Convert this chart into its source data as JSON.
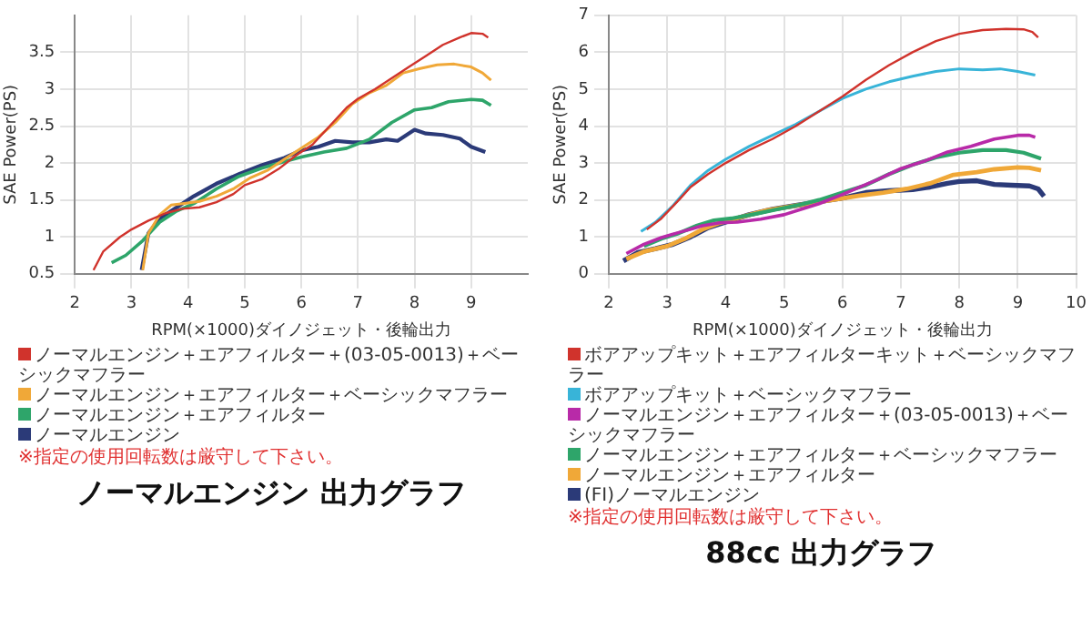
{
  "chart_data": [
    {
      "type": "line",
      "title": "ノーマルエンジン 出力グラフ",
      "xlabel": "RPM(×1000)ダイノジェット・後輪出力",
      "ylabel": "SAE Power(PS)",
      "xlim": [
        2,
        10
      ],
      "xticks": [
        2,
        3,
        4,
        5,
        6,
        7,
        8,
        9
      ],
      "ylim": [
        0.5,
        4.0
      ],
      "yticks": [
        0.5,
        1.0,
        1.5,
        2.0,
        2.5,
        3.0,
        3.5
      ],
      "grid": true,
      "legend": "bottom",
      "marker": "none",
      "line_style": "solid",
      "annotations": [
        "※指定の使用回転数は厳守して下さい。"
      ],
      "series": [
        {
          "name": "ノーマルエンジン＋エアフィルター＋(03-05-0013)＋ベーシックマフラー",
          "color": "#d0332c",
          "x": [
            2.33,
            2.5,
            2.8,
            3.0,
            3.3,
            3.6,
            3.9,
            4.2,
            4.5,
            4.8,
            5.0,
            5.3,
            5.6,
            5.9,
            6.2,
            6.5,
            6.8,
            7.0,
            7.3,
            7.6,
            7.9,
            8.2,
            8.5,
            8.8,
            9.0,
            9.2,
            9.3
          ],
          "values": [
            0.55,
            0.8,
            1.0,
            1.1,
            1.22,
            1.32,
            1.38,
            1.4,
            1.47,
            1.58,
            1.7,
            1.78,
            1.92,
            2.1,
            2.25,
            2.5,
            2.75,
            2.87,
            3.0,
            3.15,
            3.3,
            3.45,
            3.6,
            3.7,
            3.76,
            3.75,
            3.7
          ]
        },
        {
          "name": "ノーマルエンジン＋エアフィルター＋ベーシックマフラー",
          "color": "#f0a838",
          "x": [
            3.2,
            3.3,
            3.5,
            3.7,
            3.9,
            4.2,
            4.5,
            4.8,
            5.1,
            5.4,
            5.7,
            6.0,
            6.3,
            6.6,
            6.9,
            7.2,
            7.5,
            7.8,
            8.1,
            8.4,
            8.7,
            9.0,
            9.2,
            9.35
          ],
          "values": [
            0.55,
            1.05,
            1.3,
            1.43,
            1.45,
            1.48,
            1.55,
            1.65,
            1.8,
            1.9,
            2.05,
            2.2,
            2.35,
            2.55,
            2.8,
            2.95,
            3.05,
            3.22,
            3.28,
            3.33,
            3.34,
            3.3,
            3.22,
            3.12
          ]
        },
        {
          "name": "ノーマルエンジン＋エアフィルター",
          "color": "#2ea56a",
          "x": [
            2.65,
            2.9,
            3.2,
            3.5,
            3.8,
            4.1,
            4.5,
            4.9,
            5.3,
            5.7,
            6.0,
            6.4,
            6.8,
            7.2,
            7.6,
            8.0,
            8.3,
            8.6,
            9.0,
            9.2,
            9.35
          ],
          "values": [
            0.65,
            0.75,
            0.95,
            1.2,
            1.35,
            1.45,
            1.65,
            1.82,
            1.93,
            2.02,
            2.08,
            2.15,
            2.2,
            2.32,
            2.55,
            2.72,
            2.75,
            2.83,
            2.86,
            2.85,
            2.78
          ]
        },
        {
          "name": "ノーマルエンジン",
          "color": "#2b3a78",
          "x": [
            3.18,
            3.3,
            3.5,
            3.8,
            4.1,
            4.5,
            4.9,
            5.3,
            5.7,
            6.0,
            6.3,
            6.6,
            6.9,
            7.2,
            7.5,
            7.7,
            8.0,
            8.2,
            8.5,
            8.8,
            9.0,
            9.25
          ],
          "values": [
            0.55,
            1.05,
            1.25,
            1.4,
            1.55,
            1.72,
            1.85,
            1.97,
            2.07,
            2.17,
            2.22,
            2.3,
            2.28,
            2.28,
            2.32,
            2.3,
            2.45,
            2.4,
            2.38,
            2.33,
            2.22,
            2.15
          ]
        }
      ]
    },
    {
      "type": "line",
      "title": "88cc 出力グラフ",
      "xlabel": "RPM(×1000)ダイノジェット・後輪出力",
      "ylabel": "SAE Power(PS)",
      "xlim": [
        2,
        10
      ],
      "xticks": [
        2,
        3,
        4,
        5,
        6,
        7,
        8,
        9,
        10
      ],
      "ylim": [
        0,
        7
      ],
      "yticks": [
        0,
        1,
        2,
        3,
        4,
        5,
        6,
        7
      ],
      "grid": true,
      "legend": "bottom",
      "marker": "none",
      "line_style": "solid",
      "annotations": [
        "※指定の使用回転数は厳守して下さい。"
      ],
      "series": [
        {
          "name": "ボアアップキット＋エアフィルターキット＋ベーシックマフラー",
          "color": "#d0332c",
          "x": [
            2.65,
            2.9,
            3.2,
            3.4,
            3.7,
            4.0,
            4.4,
            4.8,
            5.2,
            5.6,
            6.0,
            6.4,
            6.8,
            7.2,
            7.6,
            8.0,
            8.4,
            8.8,
            9.1,
            9.25,
            9.35
          ],
          "values": [
            1.2,
            1.5,
            2.0,
            2.35,
            2.7,
            3.0,
            3.35,
            3.65,
            4.0,
            4.4,
            4.8,
            5.25,
            5.65,
            6.0,
            6.3,
            6.5,
            6.6,
            6.63,
            6.62,
            6.55,
            6.4
          ]
        },
        {
          "name": "ボアアップキット＋ベーシックマフラー",
          "color": "#38b4d8",
          "x": [
            2.55,
            2.8,
            3.1,
            3.4,
            3.7,
            4.0,
            4.4,
            4.8,
            5.2,
            5.6,
            6.0,
            6.4,
            6.8,
            7.2,
            7.6,
            8.0,
            8.4,
            8.7,
            9.0,
            9.3
          ],
          "values": [
            1.15,
            1.4,
            1.85,
            2.4,
            2.8,
            3.1,
            3.45,
            3.75,
            4.05,
            4.4,
            4.75,
            5.0,
            5.2,
            5.35,
            5.48,
            5.55,
            5.52,
            5.55,
            5.48,
            5.38
          ]
        },
        {
          "name": "ノーマルエンジン＋エアフィルター＋(03-05-0013)＋ベーシックマフラー",
          "color": "#b82aa8",
          "x": [
            2.3,
            2.6,
            2.9,
            3.2,
            3.6,
            3.9,
            4.2,
            4.6,
            5.0,
            5.3,
            5.6,
            6.0,
            6.3,
            6.6,
            7.0,
            7.4,
            7.8,
            8.2,
            8.6,
            9.0,
            9.2,
            9.3
          ],
          "values": [
            0.55,
            0.8,
            0.98,
            1.12,
            1.3,
            1.38,
            1.4,
            1.48,
            1.6,
            1.75,
            1.9,
            2.15,
            2.35,
            2.55,
            2.85,
            3.05,
            3.3,
            3.45,
            3.65,
            3.75,
            3.75,
            3.7
          ]
        },
        {
          "name": "ノーマルエンジン＋エアフィルター＋ベーシックマフラー",
          "color": "#2ea56a",
          "x": [
            2.6,
            2.9,
            3.2,
            3.5,
            3.8,
            4.1,
            4.5,
            4.9,
            5.3,
            5.6,
            6.0,
            6.4,
            6.8,
            7.2,
            7.6,
            8.0,
            8.4,
            8.8,
            9.1,
            9.4
          ],
          "values": [
            0.75,
            0.95,
            1.1,
            1.3,
            1.45,
            1.5,
            1.62,
            1.75,
            1.88,
            2.0,
            2.2,
            2.4,
            2.7,
            2.95,
            3.15,
            3.28,
            3.35,
            3.35,
            3.28,
            3.12
          ]
        },
        {
          "name": "ノーマルエンジン＋エアフィルター",
          "color": "#f0a838",
          "x": [
            2.3,
            2.6,
            3.0,
            3.3,
            3.6,
            3.9,
            4.3,
            4.7,
            5.1,
            5.5,
            5.9,
            6.3,
            6.7,
            7.1,
            7.5,
            7.9,
            8.3,
            8.6,
            9.0,
            9.2,
            9.4
          ],
          "values": [
            0.4,
            0.6,
            0.75,
            0.95,
            1.2,
            1.38,
            1.55,
            1.72,
            1.82,
            1.92,
            2.02,
            2.12,
            2.2,
            2.3,
            2.45,
            2.68,
            2.75,
            2.83,
            2.88,
            2.87,
            2.8
          ]
        },
        {
          "name": "(FI)ノーマルエンジン",
          "color": "#2b3a78",
          "x": [
            2.25,
            2.5,
            2.8,
            3.1,
            3.4,
            3.7,
            4.0,
            4.4,
            4.8,
            5.2,
            5.6,
            6.0,
            6.4,
            6.8,
            7.2,
            7.5,
            7.8,
            8.0,
            8.3,
            8.6,
            8.9,
            9.2,
            9.35,
            9.45
          ],
          "values": [
            0.35,
            0.58,
            0.68,
            0.8,
            1.0,
            1.25,
            1.4,
            1.6,
            1.75,
            1.85,
            1.95,
            2.05,
            2.2,
            2.25,
            2.28,
            2.35,
            2.45,
            2.5,
            2.52,
            2.42,
            2.4,
            2.38,
            2.3,
            2.1
          ]
        }
      ]
    }
  ]
}
